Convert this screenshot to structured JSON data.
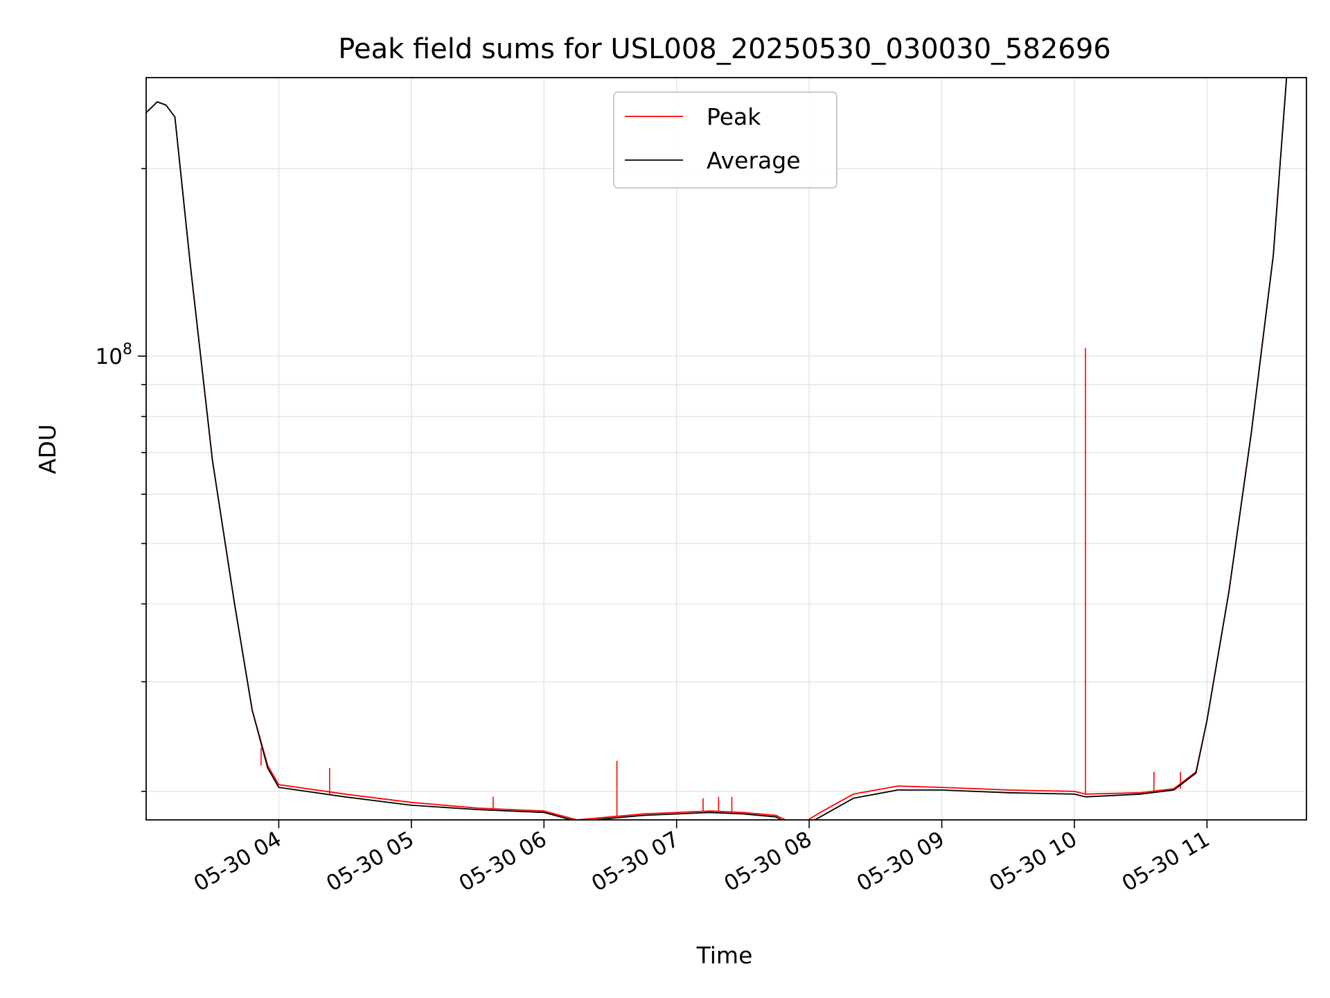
{
  "chart_data": {
    "type": "line",
    "title": "Peak field sums for USL008_20250530_030030_582696",
    "xlabel": "Time",
    "ylabel": "ADU",
    "yscale": "log",
    "x_unit": "date",
    "xlim": [
      "2025-05-30 03:00",
      "2025-05-30 11:45"
    ],
    "ylim": [
      18000000,
      280000000
    ],
    "x_ticks": [
      "2025-05-30 04:00",
      "2025-05-30 05:00",
      "2025-05-30 06:00",
      "2025-05-30 07:00",
      "2025-05-30 08:00",
      "2025-05-30 09:00",
      "2025-05-30 10:00",
      "2025-05-30 11:00"
    ],
    "x_tick_labels": [
      "05-30 04",
      "05-30 05",
      "05-30 06",
      "05-30 07",
      "05-30 08",
      "05-30 09",
      "05-30 10",
      "05-30 11"
    ],
    "y_major_ticks": [
      100000000
    ],
    "y_major_tick_labels": [
      {
        "base": "10",
        "exp": "8"
      }
    ],
    "y_minor_ticks": [
      20000000,
      30000000,
      40000000,
      50000000,
      60000000,
      70000000,
      80000000,
      90000000,
      200000000
    ],
    "grid": true,
    "legend_position": "top-center",
    "series": [
      {
        "name": "Peak",
        "color": "#ff0000",
        "x": [
          "2025-05-30 03:00",
          "2025-05-30 03:05",
          "2025-05-30 03:09",
          "2025-05-30 03:13",
          "2025-05-30 03:20",
          "2025-05-30 03:30",
          "2025-05-30 03:40",
          "2025-05-30 03:48",
          "2025-05-30 03:55",
          "2025-05-30 04:00",
          "2025-05-30 04:30",
          "2025-05-30 05:00",
          "2025-05-30 05:30",
          "2025-05-30 06:00",
          "2025-05-30 06:15",
          "2025-05-30 06:30",
          "2025-05-30 06:45",
          "2025-05-30 07:15",
          "2025-05-30 07:30",
          "2025-05-30 07:45",
          "2025-05-30 07:55",
          "2025-05-30 08:05",
          "2025-05-30 08:20",
          "2025-05-30 08:40",
          "2025-05-30 09:00",
          "2025-05-30 09:30",
          "2025-05-30 10:00",
          "2025-05-30 10:05",
          "2025-05-30 10:30",
          "2025-05-30 10:45",
          "2025-05-30 10:55",
          "2025-05-30 11:00",
          "2025-05-30 11:10",
          "2025-05-30 11:20",
          "2025-05-30 11:30",
          "2025-05-30 11:36"
        ],
        "values": [
          246000000,
          256000000,
          253000000,
          242000000,
          140000000,
          68000000,
          40000000,
          27000000,
          22000000,
          20500000,
          19800000,
          19200000,
          18800000,
          18600000,
          18000000,
          18200000,
          18400000,
          18600000,
          18500000,
          18300000,
          17600000,
          18500000,
          19800000,
          20400000,
          20300000,
          20100000,
          20000000,
          19800000,
          19900000,
          20200000,
          21500000,
          26000000,
          42000000,
          75000000,
          145000000,
          280000000
        ],
        "spikes": [
          {
            "x": "2025-05-30 03:52",
            "value": 23500000
          },
          {
            "x": "2025-05-30 04:23",
            "value": 21800000
          },
          {
            "x": "2025-05-30 05:37",
            "value": 19600000
          },
          {
            "x": "2025-05-30 06:33",
            "value": 22400000
          },
          {
            "x": "2025-05-30 07:12",
            "value": 19500000
          },
          {
            "x": "2025-05-30 07:19",
            "value": 19600000
          },
          {
            "x": "2025-05-30 07:25",
            "value": 19600000
          },
          {
            "x": "2025-05-30 10:05",
            "value": 103000000
          },
          {
            "x": "2025-05-30 10:36",
            "value": 21500000
          },
          {
            "x": "2025-05-30 10:48",
            "value": 21500000
          }
        ]
      },
      {
        "name": "Average",
        "color": "#000000",
        "x": [
          "2025-05-30 03:00",
          "2025-05-30 03:05",
          "2025-05-30 03:09",
          "2025-05-30 03:13",
          "2025-05-30 03:20",
          "2025-05-30 03:30",
          "2025-05-30 03:40",
          "2025-05-30 03:48",
          "2025-05-30 03:55",
          "2025-05-30 04:00",
          "2025-05-30 04:30",
          "2025-05-30 05:00",
          "2025-05-30 05:30",
          "2025-05-30 06:00",
          "2025-05-30 06:15",
          "2025-05-30 06:30",
          "2025-05-30 06:45",
          "2025-05-30 07:15",
          "2025-05-30 07:30",
          "2025-05-30 07:45",
          "2025-05-30 07:55",
          "2025-05-30 08:05",
          "2025-05-30 08:20",
          "2025-05-30 08:40",
          "2025-05-30 09:00",
          "2025-05-30 09:30",
          "2025-05-30 10:00",
          "2025-05-30 10:05",
          "2025-05-30 10:30",
          "2025-05-30 10:45",
          "2025-05-30 10:55",
          "2025-05-30 11:00",
          "2025-05-30 11:10",
          "2025-05-30 11:20",
          "2025-05-30 11:30",
          "2025-05-30 11:36"
        ],
        "values": [
          246000000,
          256000000,
          253000000,
          242000000,
          140000000,
          68000000,
          40000000,
          27000000,
          21800000,
          20300000,
          19600000,
          19000000,
          18700000,
          18500000,
          17900000,
          18100000,
          18300000,
          18500000,
          18400000,
          18200000,
          17400000,
          18200000,
          19500000,
          20100000,
          20100000,
          19900000,
          19800000,
          19600000,
          19800000,
          20100000,
          21400000,
          26000000,
          42000000,
          75000000,
          145000000,
          280000000
        ]
      }
    ]
  }
}
